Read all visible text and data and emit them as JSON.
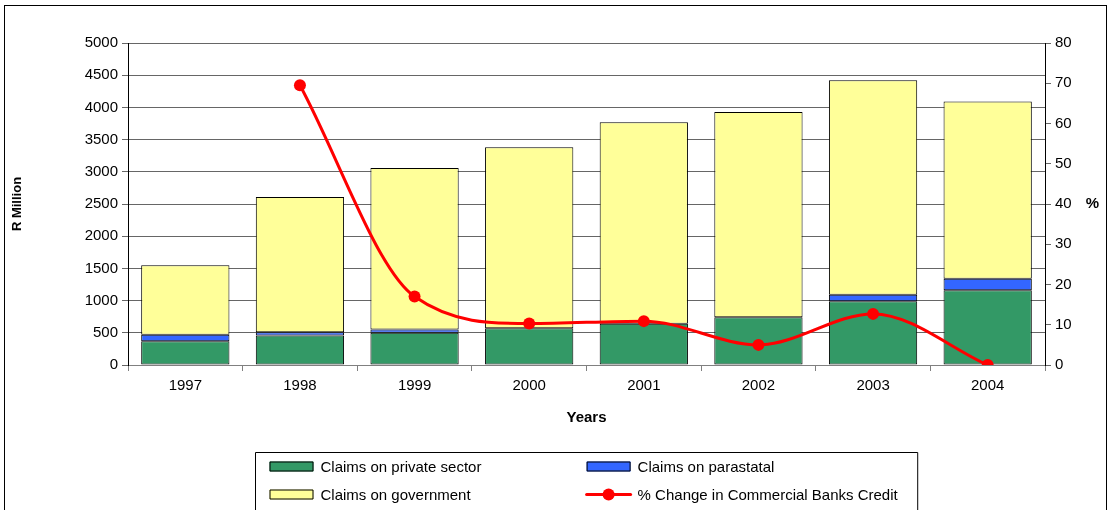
{
  "chart_data": {
    "type": "bar",
    "stacked": true,
    "categories": [
      "1997",
      "1998",
      "1999",
      "2000",
      "2001",
      "2002",
      "2003",
      "2004"
    ],
    "series": [
      {
        "name": "Claims on private sector",
        "color": "#339966",
        "values": [
          370,
          460,
          500,
          570,
          640,
          740,
          990,
          1160
        ]
      },
      {
        "name": "Claims on parastatal",
        "color": "#3366ff",
        "values": [
          100,
          50,
          50,
          null,
          null,
          null,
          100,
          180
        ]
      },
      {
        "name": "Claims on government",
        "color": "#ffff99",
        "values": [
          1080,
          2100,
          2510,
          2810,
          3130,
          3190,
          3330,
          2750
        ]
      },
      {
        "name": "% Change in Commercial Banks Credit",
        "type": "line",
        "axis": "y2",
        "color": "#ff0000",
        "values": [
          null,
          69.5,
          17,
          10.3,
          10.9,
          5,
          12.7,
          0
        ]
      }
    ],
    "xlabel": "Years",
    "ylabel": "R Million",
    "y2label": "%",
    "ylim": [
      0,
      5000
    ],
    "yticks": [
      0,
      500,
      1000,
      1500,
      2000,
      2500,
      3000,
      3500,
      4000,
      4500,
      5000
    ],
    "y2lim": [
      0,
      80
    ],
    "y2ticks": [
      0,
      10,
      20,
      30,
      40,
      50,
      60,
      70,
      80
    ],
    "grid": "y",
    "legend": "bottom",
    "marker": "circle"
  }
}
